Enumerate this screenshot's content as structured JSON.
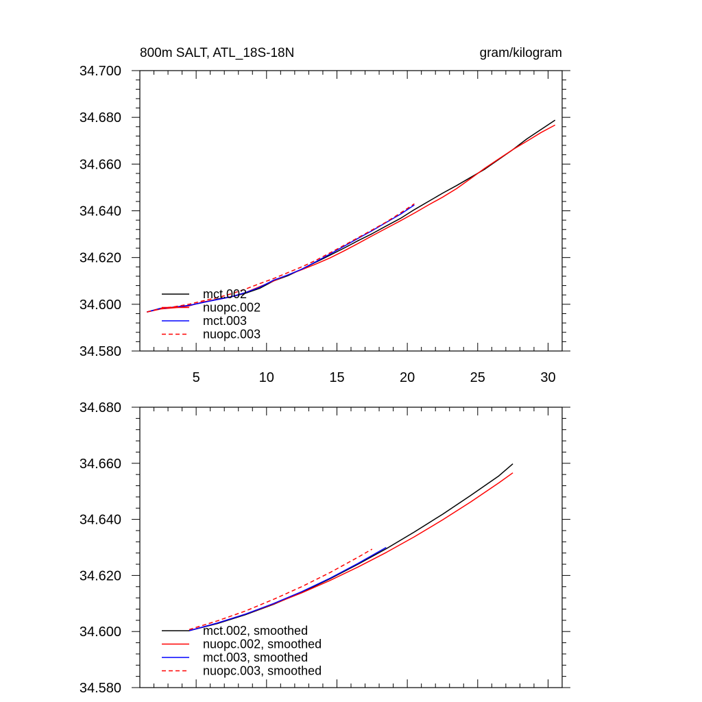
{
  "chart_data": [
    {
      "type": "line",
      "title": "800m SALT, ATL_18S-18N",
      "units": "gram/kilogram",
      "xlabel": "",
      "ylabel": "",
      "xlim": [
        1,
        31
      ],
      "ylim": [
        34.58,
        34.7
      ],
      "x_ticks": [
        5,
        10,
        15,
        20,
        25,
        30
      ],
      "x_tick_labels": [
        "5",
        "10",
        "15",
        "20",
        "25",
        "30"
      ],
      "y_ticks": [
        34.58,
        34.6,
        34.62,
        34.64,
        34.66,
        34.68,
        34.7
      ],
      "y_tick_labels": [
        "34.580",
        "34.600",
        "34.620",
        "34.640",
        "34.660",
        "34.680",
        "34.700"
      ],
      "legend_position": "bottom-left",
      "series": [
        {
          "name": "mct.002",
          "color": "#000000",
          "dash": "solid",
          "x": [
            1.5,
            2.5,
            3.5,
            4.5,
            5.5,
            6.5,
            7.5,
            8.5,
            9.5,
            10.5,
            11.5,
            12.5,
            13.5,
            14.5,
            15.5,
            16.5,
            17.5,
            18.5,
            19.5,
            20.5,
            21.5,
            22.5,
            23.5,
            24.5,
            25.5,
            26.5,
            27.5,
            28.5,
            29.5,
            30.5
          ],
          "values": [
            34.5967,
            34.5983,
            34.5988,
            34.5995,
            34.6008,
            34.6022,
            34.6032,
            34.6047,
            34.6068,
            34.61,
            34.6122,
            34.615,
            34.618,
            34.621,
            34.624,
            34.6272,
            34.6302,
            34.6335,
            34.6367,
            34.6405,
            34.644,
            34.6475,
            34.6508,
            34.6543,
            34.6578,
            34.662,
            34.6662,
            34.6708,
            34.6748,
            34.6788
          ]
        },
        {
          "name": "nuopc.002",
          "color": "#ff0000",
          "dash": "solid",
          "x": [
            1.5,
            2.5,
            3.5,
            4.5,
            5.5,
            6.5,
            7.5,
            8.5,
            9.5,
            10.5,
            11.5,
            12.5,
            13.5,
            14.5,
            15.5,
            16.5,
            17.5,
            18.5,
            19.5,
            20.5,
            21.5,
            22.5,
            23.5,
            24.5,
            25.5,
            26.5,
            27.5,
            28.5,
            29.5,
            30.5
          ],
          "values": [
            34.5967,
            34.598,
            34.5985,
            34.5993,
            34.601,
            34.602,
            34.6032,
            34.605,
            34.6075,
            34.61,
            34.6125,
            34.6148,
            34.6172,
            34.6198,
            34.6228,
            34.626,
            34.6293,
            34.6325,
            34.6357,
            34.639,
            34.6425,
            34.6458,
            34.6495,
            34.6538,
            34.6582,
            34.6622,
            34.6662,
            34.6698,
            34.6735,
            34.6767
          ]
        },
        {
          "name": "mct.003",
          "color": "#0000ff",
          "dash": "solid",
          "x": [
            1.5,
            2.5,
            3.5,
            4.5,
            5.5,
            6.5,
            7.5,
            8.5,
            9.5,
            10.5,
            11.5,
            12.5,
            13.5,
            14.5,
            15.5,
            16.5,
            17.5,
            18.5,
            19.5,
            20.5
          ],
          "values": [
            34.5967,
            34.5983,
            34.5988,
            34.5995,
            34.6008,
            34.602,
            34.6032,
            34.605,
            34.6072,
            34.6103,
            34.6125,
            34.615,
            34.6182,
            34.6215,
            34.6248,
            34.6282,
            34.6315,
            34.635,
            34.6385,
            34.6425
          ]
        },
        {
          "name": "nuopc.003",
          "color": "#ff0000",
          "dash": "dashed",
          "x": [
            1.5,
            2.5,
            3.5,
            4.5,
            5.5,
            6.5,
            7.5,
            8.5,
            9.5,
            10.5,
            11.5,
            12.5,
            13.5,
            14.5,
            15.5,
            16.5,
            17.5,
            18.5,
            19.5,
            20.5
          ],
          "values": [
            34.5967,
            34.5982,
            34.599,
            34.6,
            34.6015,
            34.6028,
            34.6045,
            34.6065,
            34.6088,
            34.611,
            34.6135,
            34.616,
            34.6188,
            34.622,
            34.6252,
            34.6285,
            34.6318,
            34.6352,
            34.639,
            34.643
          ]
        }
      ]
    },
    {
      "type": "line",
      "title": "",
      "xlabel": "",
      "ylabel": "",
      "xlim": [
        1,
        31
      ],
      "ylim": [
        34.58,
        34.68
      ],
      "x_ticks": [
        5,
        10,
        15,
        20,
        25,
        30
      ],
      "x_tick_labels": [],
      "y_ticks": [
        34.58,
        34.6,
        34.62,
        34.64,
        34.66,
        34.68
      ],
      "y_tick_labels": [
        "34.580",
        "34.600",
        "34.620",
        "34.640",
        "34.660",
        "34.680"
      ],
      "legend_position": "bottom-left",
      "series": [
        {
          "name": "mct.002, smoothed",
          "color": "#000000",
          "dash": "solid",
          "x": [
            4.5,
            6.5,
            8.5,
            10.5,
            12.5,
            14.5,
            16.5,
            18.5,
            20.5,
            22.5,
            24.5,
            26.5,
            27.5
          ],
          "values": [
            34.6003,
            34.6028,
            34.606,
            34.6097,
            34.614,
            34.6188,
            34.624,
            34.6295,
            34.6355,
            34.6418,
            34.6485,
            34.6555,
            34.6598
          ]
        },
        {
          "name": "nuopc.002, smoothed",
          "color": "#ff0000",
          "dash": "solid",
          "x": [
            4.5,
            6.5,
            8.5,
            10.5,
            12.5,
            14.5,
            16.5,
            18.5,
            20.5,
            22.5,
            24.5,
            26.5,
            27.5
          ],
          "values": [
            34.6003,
            34.603,
            34.6062,
            34.6098,
            34.6138,
            34.6182,
            34.623,
            34.6282,
            34.6338,
            34.6398,
            34.6462,
            34.653,
            34.6566
          ]
        },
        {
          "name": "mct.003, smoothed",
          "color": "#0000ff",
          "dash": "solid",
          "x": [
            4.5,
            6.5,
            8.5,
            10.5,
            12.5,
            14.5,
            16.5,
            18.5
          ],
          "values": [
            34.6003,
            34.603,
            34.6062,
            34.61,
            34.6142,
            34.619,
            34.6243,
            34.63
          ]
        },
        {
          "name": "nuopc.003, smoothed",
          "color": "#ff0000",
          "dash": "dashed",
          "x": [
            4.5,
            6.5,
            8.5,
            10.5,
            12.5,
            14.5,
            16.5,
            17.5
          ],
          "values": [
            34.6007,
            34.6038,
            34.6073,
            34.6115,
            34.616,
            34.621,
            34.6265,
            34.6294
          ]
        }
      ]
    }
  ]
}
